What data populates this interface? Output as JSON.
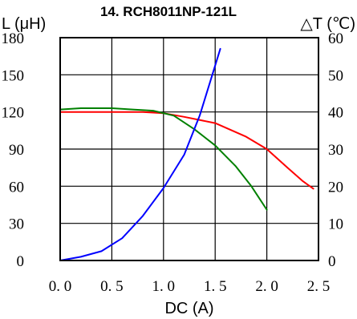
{
  "chart_data": {
    "type": "line",
    "title": "14. RCH8011NP-121L",
    "ylabel_left": "L (μH)",
    "ylabel_right": "△T (℃)",
    "xlabel": "DC (A)",
    "xlim": [
      0,
      2.5
    ],
    "ylim_left": [
      0,
      180
    ],
    "ylim_right": [
      0,
      60
    ],
    "x_ticks": [
      "0. 0",
      "0. 5",
      "1. 0",
      "1. 5",
      "2. 0",
      "2. 5"
    ],
    "y_left_ticks": [
      "0",
      "30",
      "60",
      "90",
      "120",
      "150",
      "180"
    ],
    "y_right_ticks": [
      "0",
      "10",
      "20",
      "30",
      "40",
      "50",
      "60"
    ],
    "grid": true,
    "series": [
      {
        "color": "#ff0000",
        "axis": "left",
        "points": [
          [
            0,
            120
          ],
          [
            0.5,
            120
          ],
          [
            0.8,
            120
          ],
          [
            1.0,
            119
          ],
          [
            1.2,
            116
          ],
          [
            1.5,
            111
          ],
          [
            1.8,
            100
          ],
          [
            2.0,
            90
          ],
          [
            2.2,
            75
          ],
          [
            2.35,
            64
          ],
          [
            2.45,
            58
          ]
        ]
      },
      {
        "color": "#008000",
        "axis": "left",
        "points": [
          [
            0,
            122
          ],
          [
            0.2,
            123
          ],
          [
            0.5,
            123
          ],
          [
            0.7,
            122
          ],
          [
            0.9,
            121
          ],
          [
            1.1,
            117
          ],
          [
            1.3,
            106
          ],
          [
            1.5,
            93
          ],
          [
            1.7,
            76
          ],
          [
            1.85,
            60
          ],
          [
            2.0,
            41
          ]
        ]
      },
      {
        "color": "#0000ff",
        "axis": "right",
        "points": [
          [
            0,
            0
          ],
          [
            0.2,
            1
          ],
          [
            0.4,
            2.5
          ],
          [
            0.6,
            6
          ],
          [
            0.8,
            12
          ],
          [
            1.0,
            19.5
          ],
          [
            1.2,
            28.5
          ],
          [
            1.35,
            39
          ],
          [
            1.45,
            48
          ],
          [
            1.55,
            57
          ]
        ]
      }
    ]
  }
}
